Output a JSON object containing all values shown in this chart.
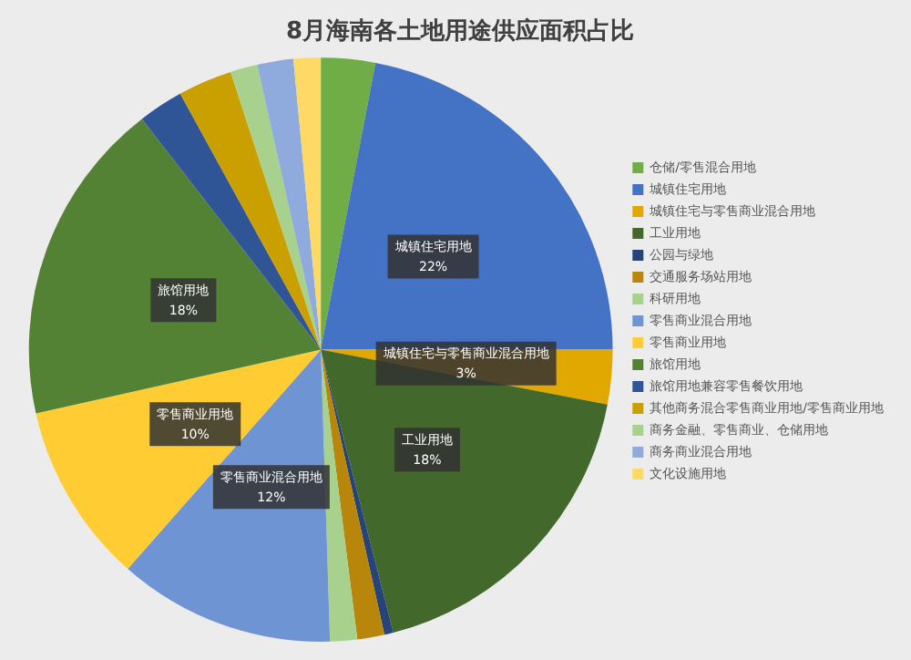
{
  "chart_data": {
    "type": "pie",
    "title": "8月海南各土地用途供应面积占比",
    "categories": [
      "仓储/零售混合用地",
      "城镇住宅用地",
      "城镇住宅与零售商业混合用地",
      "工业用地",
      "公园与绿地",
      "交通服务场站用地",
      "科研用地",
      "零售商业混合用地",
      "零售商业用地",
      "旅馆用地",
      "旅馆用地兼容零售餐饮用地",
      "其他商务混合零售商业用地/零售商业用地",
      "商务金融、零售商业、仓储用地",
      "商务商业混合用地",
      "文化设施用地"
    ],
    "values": [
      3,
      22,
      3,
      18,
      0.5,
      1.5,
      1.5,
      12,
      10,
      18,
      2.5,
      3,
      1.5,
      2,
      1.5
    ],
    "value_labels": [
      null,
      "22%",
      "3%",
      "18%",
      null,
      null,
      null,
      "12%",
      "10%",
      "18%",
      null,
      null,
      null,
      null,
      null
    ],
    "colors": [
      "#70ad47",
      "#4472c4",
      "#e0a800",
      "#43682b",
      "#264478",
      "#b8860b",
      "#a9d18e",
      "#6f94d4",
      "#ffcd33",
      "#548235",
      "#2f5597",
      "#c9a000",
      "#a9d18e",
      "#8faadc",
      "#ffd966"
    ],
    "legend": "right"
  }
}
